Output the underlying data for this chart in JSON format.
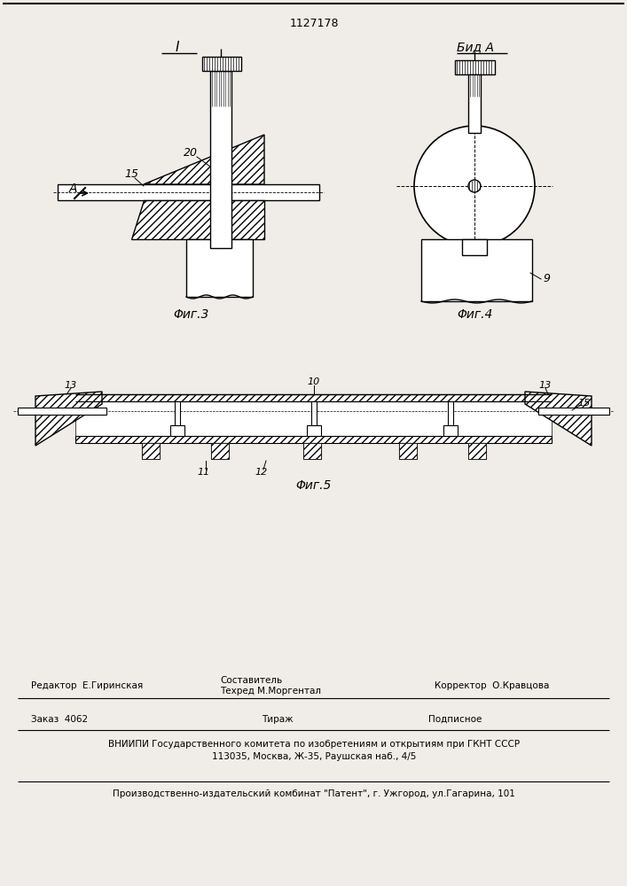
{
  "title_number": "1127178",
  "fig3_label": "Φиг.3",
  "fig4_label": "Φиг.4",
  "fig5_label": "Φиг.5",
  "label_I": "I",
  "label_vid_a": "Бид A",
  "label_A": "A",
  "label_15_f3": "15",
  "label_20_f3": "20",
  "label_9_f4": "9",
  "label_10_f5": "10",
  "label_11_f5": "11",
  "label_12_f5": "12",
  "label_13L": "13",
  "label_13R": "13",
  "label_15R": "15",
  "footer_editor": "Редактор  Е.Гиринская",
  "footer_comp_title": "Составитель",
  "footer_techred": "Техред М.Моргентал",
  "footer_corrector": "Корректор  О.Кравцова",
  "footer_order": "Заказ  4062",
  "footer_tirazh": "Тираж",
  "footer_podp": "Подписное",
  "footer_vniipи": "ВНИИПИ Государственного комитета по изобретениям и открытиям при ГКНТ СССР",
  "footer_address": "113035, Москва, Ж-35, Раушская наб., 4/5",
  "footer_plant": "Производственно-издательский комбинат \"Патент\", г. Ужгород, ул.Гагарина, 101",
  "bg_color": "#f0ede8"
}
